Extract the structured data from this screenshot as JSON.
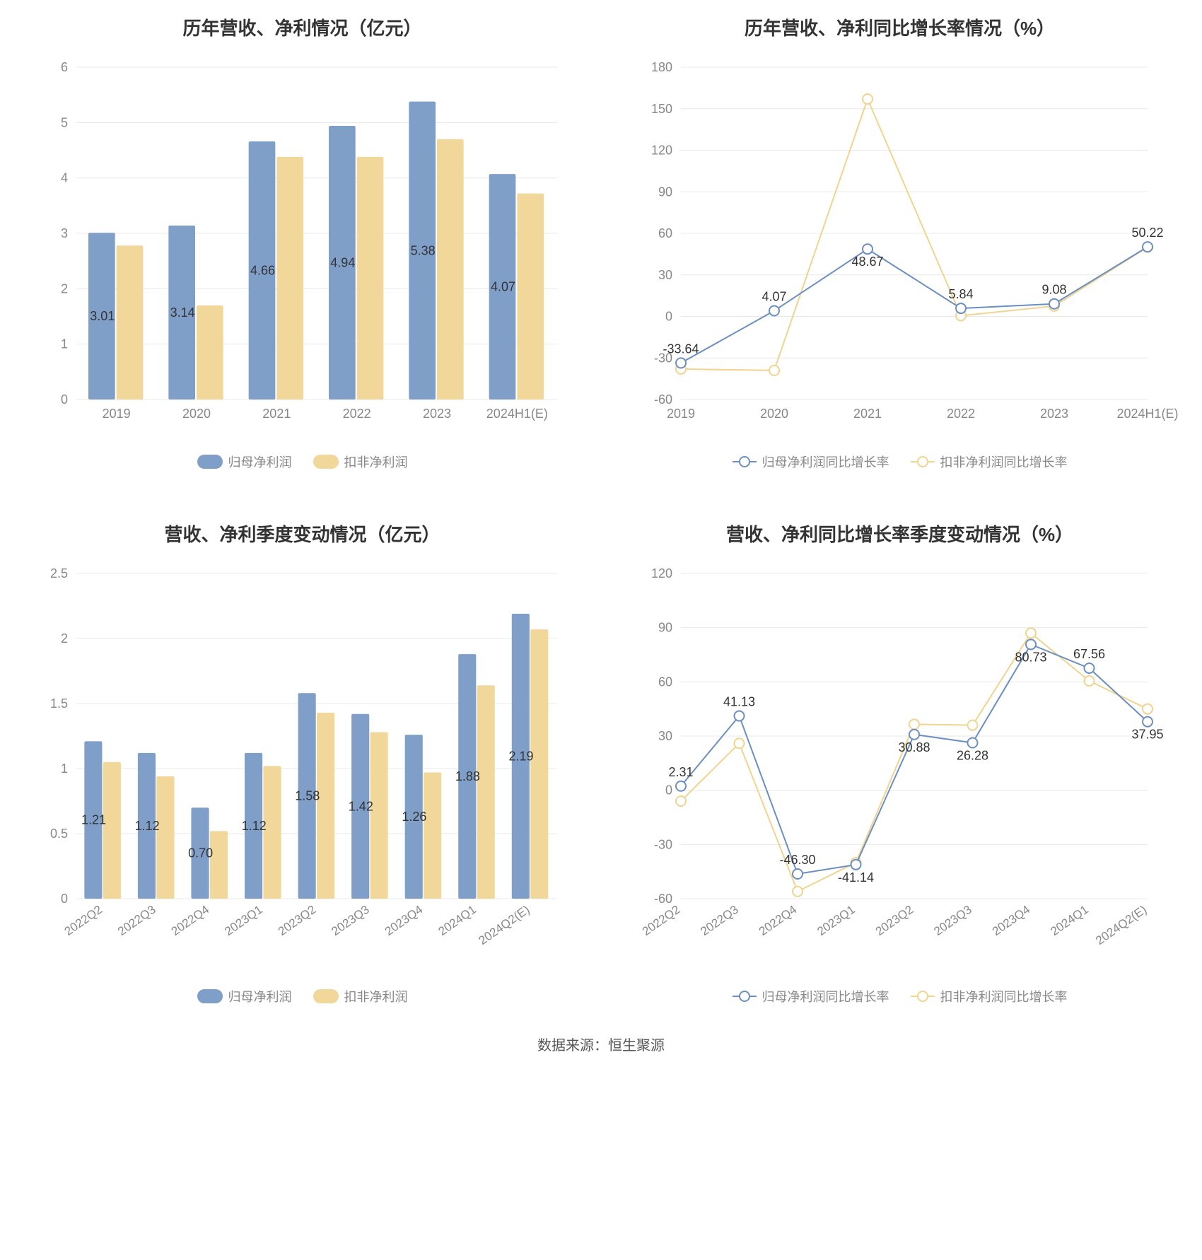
{
  "footer": "数据来源：恒生聚源",
  "colors": {
    "primary": "#7f9fc9",
    "secondary": "#f2d79a",
    "primary_line": "#6b8fc0",
    "secondary_line": "#f0d48f",
    "grid": "#e8e8e8",
    "axis_text": "#888888",
    "value_text": "#333333",
    "bg": "#ffffff"
  },
  "chart1": {
    "title": "历年营收、净利情况（亿元）",
    "type": "bar",
    "categories": [
      "2019",
      "2020",
      "2021",
      "2022",
      "2023",
      "2024H1(E)"
    ],
    "series": [
      {
        "name": "归母净利润",
        "color": "#7f9fc9",
        "values": [
          3.01,
          3.14,
          4.66,
          4.94,
          5.38,
          4.07
        ]
      },
      {
        "name": "扣非净利润",
        "color": "#f2d79a",
        "values": [
          2.78,
          1.7,
          4.38,
          4.38,
          4.7,
          3.72
        ]
      }
    ],
    "value_labels": [
      "3.01",
      "3.14",
      "4.66",
      "4.94",
      "5.38",
      "4.07"
    ],
    "ylim": [
      0,
      6
    ],
    "ytick_step": 1,
    "bar_width": 0.35,
    "title_fontsize": 26,
    "label_fontsize": 18,
    "grid_color": "#e8e8e8",
    "background_color": "#ffffff"
  },
  "chart2": {
    "title": "历年营收、净利同比增长率情况（%）",
    "type": "line",
    "categories": [
      "2019",
      "2020",
      "2021",
      "2022",
      "2023",
      "2024H1(E)"
    ],
    "series": [
      {
        "name": "归母净利润同比增长率",
        "color": "#6b8fc0",
        "values": [
          -33.64,
          4.07,
          48.67,
          5.84,
          9.08,
          50.22
        ]
      },
      {
        "name": "扣非净利润同比增长率",
        "color": "#f0d48f",
        "values": [
          -38.0,
          -39.0,
          157.0,
          0.5,
          7.5,
          50.0
        ]
      }
    ],
    "value_labels": [
      "-33.64",
      "4.07",
      "48.67",
      "5.84",
      "9.08",
      "50.22"
    ],
    "ylim": [
      -60,
      180
    ],
    "ytick_step": 30,
    "marker": "circle",
    "marker_size": 7,
    "line_width": 2,
    "title_fontsize": 26,
    "label_fontsize": 18,
    "grid_color": "#e8e8e8",
    "background_color": "#ffffff"
  },
  "chart3": {
    "title": "营收、净利季度变动情况（亿元）",
    "type": "bar",
    "categories": [
      "2022Q2",
      "2022Q3",
      "2022Q4",
      "2023Q1",
      "2023Q2",
      "2023Q3",
      "2023Q4",
      "2024Q1",
      "2024Q2(E)"
    ],
    "series": [
      {
        "name": "归母净利润",
        "color": "#7f9fc9",
        "values": [
          1.21,
          1.12,
          0.7,
          1.12,
          1.58,
          1.42,
          1.26,
          1.88,
          2.19
        ]
      },
      {
        "name": "扣非净利润",
        "color": "#f2d79a",
        "values": [
          1.05,
          0.94,
          0.52,
          1.02,
          1.43,
          1.28,
          0.97,
          1.64,
          2.07
        ]
      }
    ],
    "value_labels": [
      "1.21",
      "1.12",
      "0.70",
      "1.12",
      "1.58",
      "1.42",
      "1.26",
      "1.88",
      "2.19"
    ],
    "ylim": [
      0,
      2.5
    ],
    "ytick_step": 0.5,
    "bar_width": 0.35,
    "x_label_rotation": -35,
    "title_fontsize": 26,
    "label_fontsize": 18,
    "grid_color": "#e8e8e8",
    "background_color": "#ffffff"
  },
  "chart4": {
    "title": "营收、净利同比增长率季度变动情况（%）",
    "type": "line",
    "categories": [
      "2022Q2",
      "2022Q3",
      "2022Q4",
      "2023Q1",
      "2023Q2",
      "2023Q3",
      "2023Q4",
      "2024Q1",
      "2024Q2(E)"
    ],
    "series": [
      {
        "name": "归母净利润同比增长率",
        "color": "#6b8fc0",
        "values": [
          2.31,
          41.13,
          -46.3,
          -41.14,
          30.88,
          26.28,
          80.73,
          67.56,
          37.95
        ]
      },
      {
        "name": "扣非净利润同比增长率",
        "color": "#f0d48f",
        "values": [
          -6.0,
          26.0,
          -56.0,
          -40.0,
          36.5,
          36.0,
          87.0,
          60.5,
          45.0
        ]
      }
    ],
    "value_labels": [
      "2.31",
      "41.13",
      "-46.30",
      "-41.14",
      "30.88",
      "26.28",
      "80.73",
      "67.56",
      "37.95"
    ],
    "ylim": [
      -60,
      120
    ],
    "ytick_step": 30,
    "marker": "circle",
    "marker_size": 7,
    "line_width": 2,
    "x_label_rotation": -35,
    "title_fontsize": 26,
    "label_fontsize": 18,
    "grid_color": "#e8e8e8",
    "background_color": "#ffffff"
  }
}
